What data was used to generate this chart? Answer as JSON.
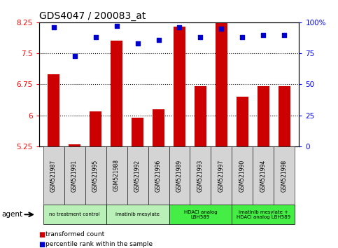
{
  "title": "GDS4047 / 200083_at",
  "samples": [
    "GSM521987",
    "GSM521991",
    "GSM521995",
    "GSM521988",
    "GSM521992",
    "GSM521996",
    "GSM521989",
    "GSM521993",
    "GSM521997",
    "GSM521990",
    "GSM521994",
    "GSM521998"
  ],
  "red_values": [
    7.0,
    5.3,
    6.1,
    7.8,
    5.95,
    6.15,
    8.15,
    6.7,
    8.6,
    6.45,
    6.7,
    6.7
  ],
  "blue_values": [
    96,
    73,
    88,
    97,
    83,
    86,
    96,
    88,
    95,
    88,
    90,
    90
  ],
  "ylim_left": [
    5.25,
    8.25
  ],
  "ylim_right": [
    0,
    100
  ],
  "yticks_left": [
    5.25,
    6.0,
    6.75,
    7.5,
    8.25
  ],
  "yticks_right": [
    0,
    25,
    50,
    75,
    100
  ],
  "ytick_labels_left": [
    "5.25",
    "6",
    "6.75",
    "7.5",
    "8.25"
  ],
  "ytick_labels_right": [
    "0",
    "25",
    "50",
    "75",
    "100%"
  ],
  "hlines": [
    7.5,
    6.75,
    6.0
  ],
  "groups": [
    {
      "label": "no treatment control",
      "start": 0,
      "end": 3,
      "color": "#b8f0b8"
    },
    {
      "label": "imatinib mesylate",
      "start": 3,
      "end": 6,
      "color": "#b8f0b8"
    },
    {
      "label": "HDACi analog\nLBH589",
      "start": 6,
      "end": 9,
      "color": "#44ee44"
    },
    {
      "label": "imatinib mesylate +\nHDACi analog LBH589",
      "start": 9,
      "end": 12,
      "color": "#44ee44"
    }
  ],
  "agent_label": "agent",
  "legend_red": "transformed count",
  "legend_blue": "percentile rank within the sample",
  "bar_color": "#cc0000",
  "dot_color": "#0000cc",
  "bar_width": 0.55,
  "title_fontsize": 10,
  "tick_fontsize": 7.5,
  "label_fontsize": 6.0
}
